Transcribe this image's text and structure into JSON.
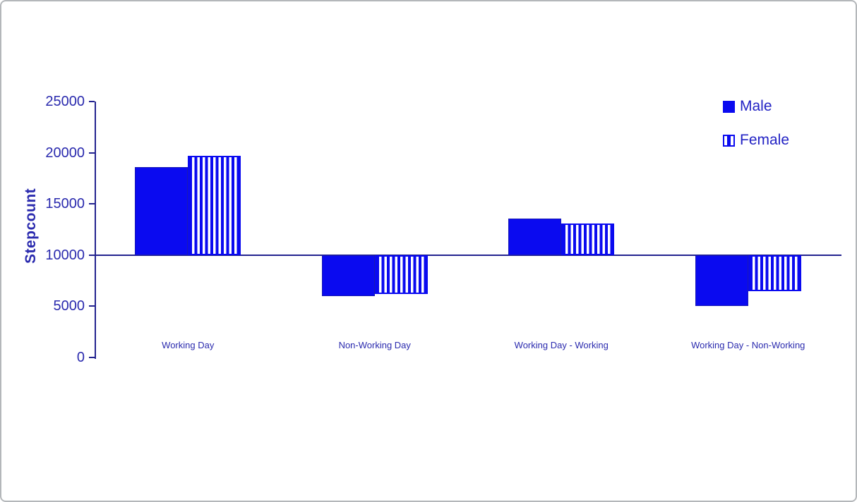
{
  "frame": {
    "background": "#ffffff",
    "border_color": "#b4b7ba"
  },
  "chart_data": {
    "type": "bar",
    "title": "",
    "xlabel": "",
    "ylabel": "Stepcount",
    "categories": [
      "Working Day",
      "Non-Working Day",
      "Working Day - Working",
      "Working Day - Non-Working"
    ],
    "series": [
      {
        "name": "Male",
        "style": "solid",
        "values": [
          18600,
          6000,
          13600,
          5000
        ]
      },
      {
        "name": "Female",
        "style": "striped",
        "values": [
          19700,
          6200,
          13100,
          6500
        ]
      }
    ],
    "ylim": [
      0,
      25000
    ],
    "yticks": [
      0,
      5000,
      10000,
      15000,
      20000,
      25000
    ],
    "baseline": 10000,
    "grid": "off",
    "legend_position": "top-right",
    "colors": {
      "bar_fill": "#0a0af0",
      "axis_line": "#23238f",
      "text": "#2a2aae",
      "legend_text": "#2222c4"
    }
  }
}
